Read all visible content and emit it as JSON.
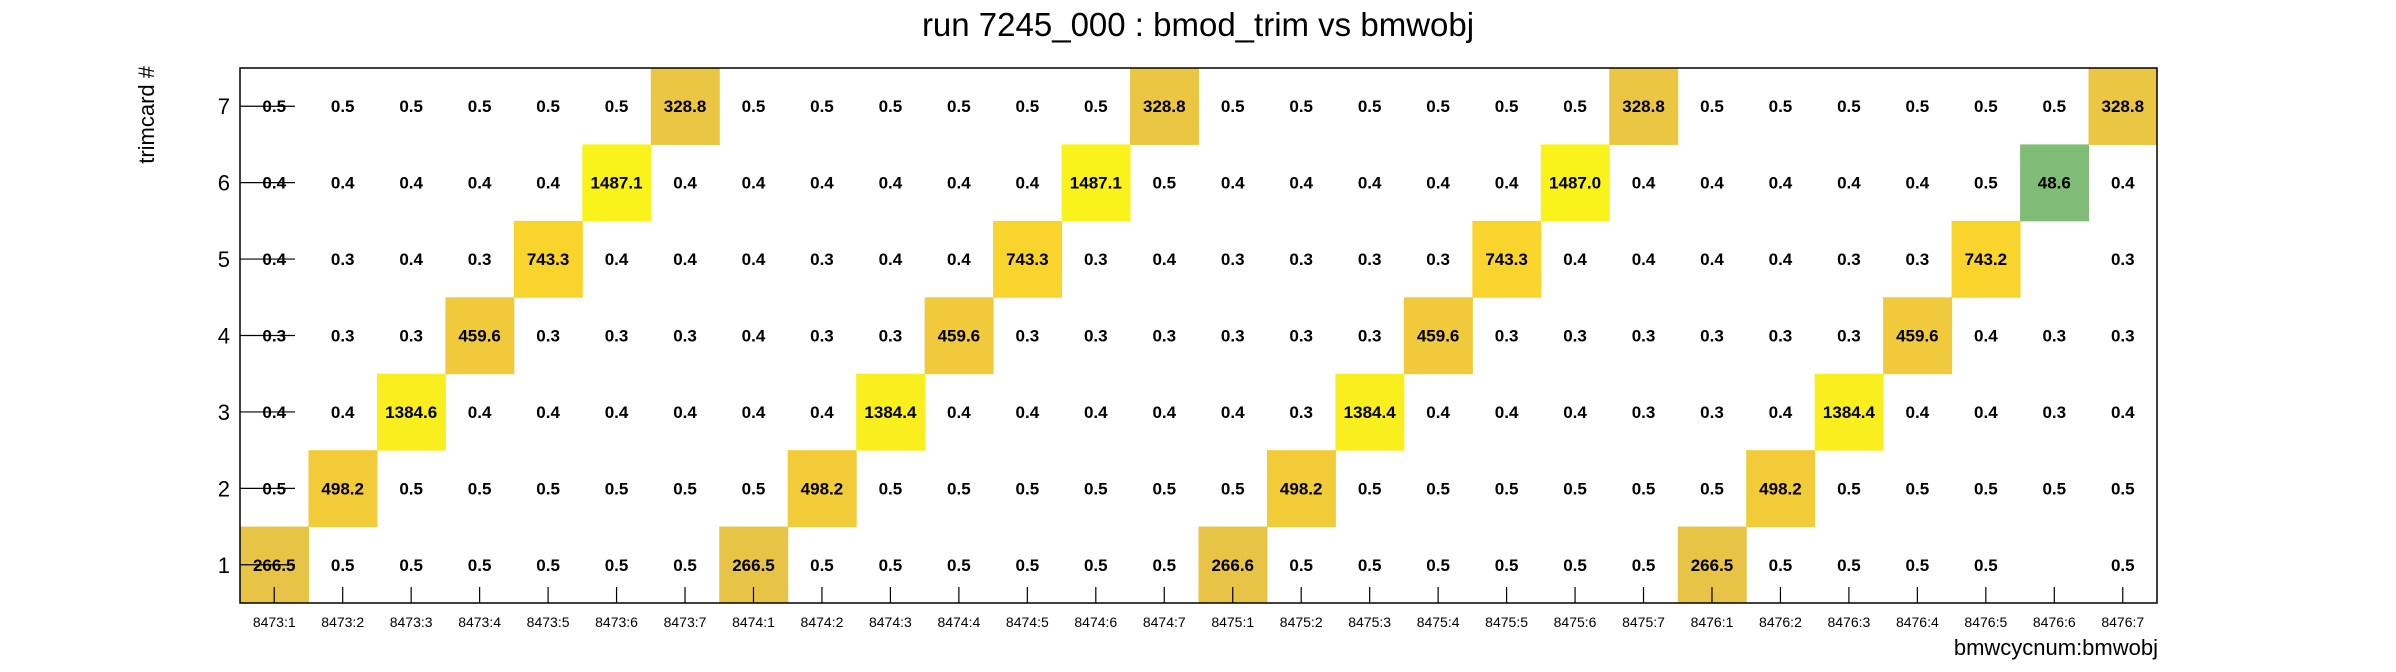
{
  "chart_data": {
    "type": "heatmap",
    "title": "run 7245_000 : bmod_trim vs bmwobj",
    "xlabel": "bmwcycnum:bmwobj",
    "ylabel": "trimcard #",
    "x_categories": [
      "8473:1",
      "8473:2",
      "8473:3",
      "8473:4",
      "8473:5",
      "8473:6",
      "8473:7",
      "8474:1",
      "8474:2",
      "8474:3",
      "8474:4",
      "8474:5",
      "8474:6",
      "8474:7",
      "8475:1",
      "8475:2",
      "8475:3",
      "8475:4",
      "8475:5",
      "8475:6",
      "8475:7",
      "8476:1",
      "8476:2",
      "8476:3",
      "8476:4",
      "8476:5",
      "8476:6",
      "8476:7"
    ],
    "y_categories": [
      "1",
      "2",
      "3",
      "4",
      "5",
      "6",
      "7"
    ],
    "cells": [
      [
        "266.5",
        "0.5",
        "0.5",
        "0.5",
        "0.5",
        "0.5",
        "0.5",
        "266.5",
        "0.5",
        "0.5",
        "0.5",
        "0.5",
        "0.5",
        "0.5",
        "266.6",
        "0.5",
        "0.5",
        "0.5",
        "0.5",
        "0.5",
        "0.5",
        "266.5",
        "0.5",
        "0.5",
        "0.5",
        "0.5",
        "",
        "0.5"
      ],
      [
        "0.5",
        "498.2",
        "0.5",
        "0.5",
        "0.5",
        "0.5",
        "0.5",
        "0.5",
        "498.2",
        "0.5",
        "0.5",
        "0.5",
        "0.5",
        "0.5",
        "0.5",
        "498.2",
        "0.5",
        "0.5",
        "0.5",
        "0.5",
        "0.5",
        "0.5",
        "498.2",
        "0.5",
        "0.5",
        "0.5",
        "0.5",
        "0.5"
      ],
      [
        "0.4",
        "0.4",
        "1384.6",
        "0.4",
        "0.4",
        "0.4",
        "0.4",
        "0.4",
        "0.4",
        "1384.4",
        "0.4",
        "0.4",
        "0.4",
        "0.4",
        "0.4",
        "0.3",
        "1384.4",
        "0.4",
        "0.4",
        "0.4",
        "0.3",
        "0.3",
        "0.4",
        "1384.4",
        "0.4",
        "0.4",
        "0.3",
        "0.4"
      ],
      [
        "0.3",
        "0.3",
        "0.3",
        "459.6",
        "0.3",
        "0.3",
        "0.3",
        "0.4",
        "0.3",
        "0.3",
        "459.6",
        "0.3",
        "0.3",
        "0.3",
        "0.3",
        "0.3",
        "0.3",
        "459.6",
        "0.3",
        "0.3",
        "0.3",
        "0.3",
        "0.3",
        "0.3",
        "459.6",
        "0.4",
        "0.3",
        "0.3"
      ],
      [
        "0.4",
        "0.3",
        "0.4",
        "0.3",
        "743.3",
        "0.4",
        "0.4",
        "0.4",
        "0.3",
        "0.4",
        "0.4",
        "743.3",
        "0.3",
        "0.4",
        "0.3",
        "0.3",
        "0.3",
        "0.3",
        "743.3",
        "0.4",
        "0.4",
        "0.4",
        "0.4",
        "0.3",
        "0.3",
        "743.2",
        "",
        "0.3"
      ],
      [
        "0.4",
        "0.4",
        "0.4",
        "0.4",
        "0.4",
        "1487.1",
        "0.4",
        "0.4",
        "0.4",
        "0.4",
        "0.4",
        "0.4",
        "1487.1",
        "0.5",
        "0.4",
        "0.4",
        "0.4",
        "0.4",
        "0.4",
        "1487.0",
        "0.4",
        "0.4",
        "0.4",
        "0.4",
        "0.4",
        "0.5",
        "48.6",
        "0.4"
      ],
      [
        "0.5",
        "0.5",
        "0.5",
        "0.5",
        "0.5",
        "0.5",
        "328.8",
        "0.5",
        "0.5",
        "0.5",
        "0.5",
        "0.5",
        "0.5",
        "328.8",
        "0.5",
        "0.5",
        "0.5",
        "0.5",
        "0.5",
        "0.5",
        "328.8",
        "0.5",
        "0.5",
        "0.5",
        "0.5",
        "0.5",
        "0.5",
        "328.8"
      ]
    ],
    "color_scale": {
      "low": "#4fbc8a",
      "mid": "#e3c04c",
      "high": "#f9f31b",
      "min": 0,
      "max": 1500
    },
    "grid": false,
    "legend": "none"
  }
}
